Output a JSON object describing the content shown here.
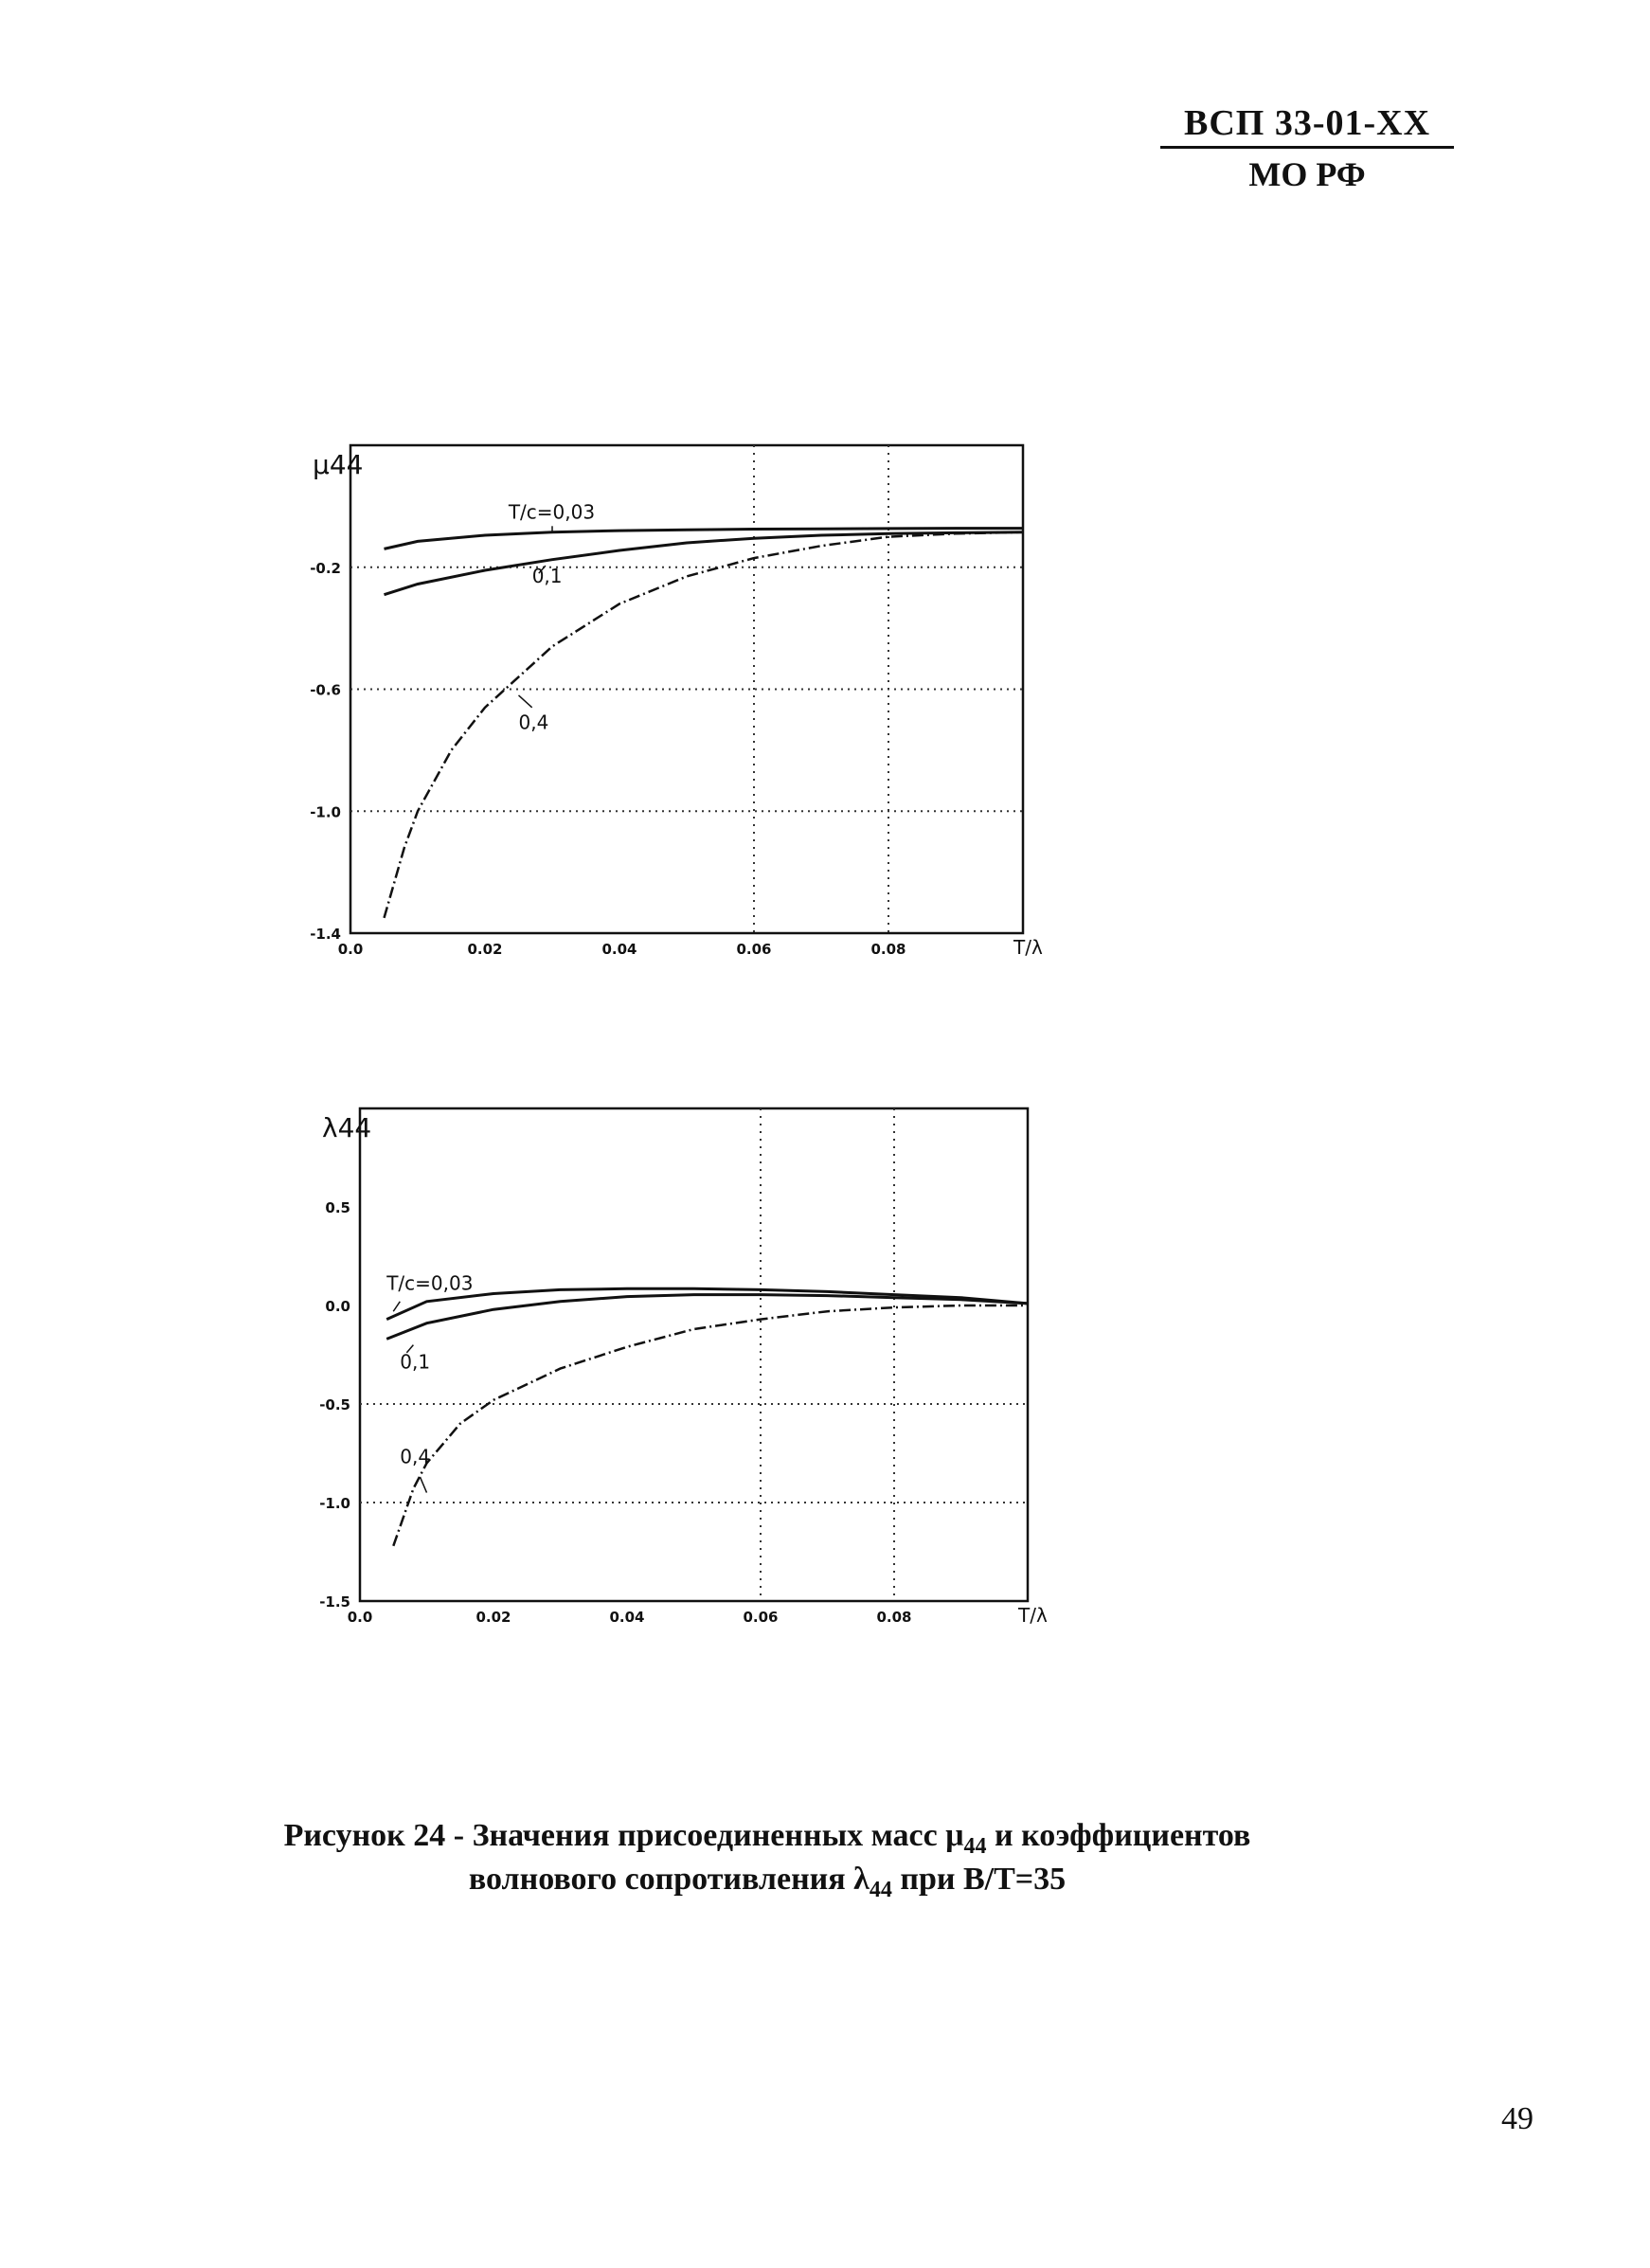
{
  "header": {
    "code": "ВСП 33-01-XX",
    "org": "МО РФ"
  },
  "chart_data": [
    {
      "type": "line",
      "ylabel": "μ44",
      "xlabel": "T/λ",
      "xlim": [
        0.0,
        0.1
      ],
      "ylim": [
        -1.4,
        0.2
      ],
      "xticks": [
        "0.0",
        "0.02",
        "0.04",
        "0.06",
        "0.08"
      ],
      "xtick_values": [
        0.0,
        0.02,
        0.04,
        0.06,
        0.08
      ],
      "yticks": [
        "-0.2",
        "-0.6",
        "-1.0",
        "-1.4"
      ],
      "ytick_values": [
        -0.2,
        -0.6,
        -1.0,
        -1.4
      ],
      "series": [
        {
          "name": "T/c=0,03",
          "style": "solid",
          "x": [
            0.005,
            0.01,
            0.02,
            0.03,
            0.04,
            0.05,
            0.06,
            0.07,
            0.08,
            0.09,
            0.1
          ],
          "y": [
            -0.14,
            -0.115,
            -0.095,
            -0.085,
            -0.08,
            -0.077,
            -0.075,
            -0.074,
            -0.073,
            -0.072,
            -0.072
          ]
        },
        {
          "name": "0,1",
          "style": "solid",
          "x": [
            0.005,
            0.01,
            0.02,
            0.03,
            0.04,
            0.05,
            0.06,
            0.07,
            0.08,
            0.09,
            0.1
          ],
          "y": [
            -0.29,
            -0.255,
            -0.21,
            -0.175,
            -0.145,
            -0.12,
            -0.105,
            -0.095,
            -0.09,
            -0.087,
            -0.085
          ]
        },
        {
          "name": "0,4",
          "style": "dashed",
          "x": [
            0.005,
            0.008,
            0.01,
            0.015,
            0.02,
            0.025,
            0.03,
            0.04,
            0.05,
            0.06,
            0.07,
            0.08,
            0.09,
            0.1
          ],
          "y": [
            -1.35,
            -1.12,
            -1.0,
            -0.8,
            -0.66,
            -0.56,
            -0.46,
            -0.32,
            -0.23,
            -0.17,
            -0.13,
            -0.1,
            -0.09,
            -0.085
          ]
        }
      ],
      "annotations": [
        "T/c=0,03",
        "0,1",
        "0,4"
      ]
    },
    {
      "type": "line",
      "ylabel": "λ44",
      "xlabel": "T/λ",
      "xlim": [
        0.0,
        0.1
      ],
      "ylim": [
        -1.5,
        1.0
      ],
      "xticks": [
        "0.0",
        "0.02",
        "0.04",
        "0.06",
        "0.08"
      ],
      "xtick_values": [
        0.0,
        0.02,
        0.04,
        0.06,
        0.08
      ],
      "yticks": [
        "0.5",
        "0.0",
        "-0.5",
        "-1.0",
        "-1.5"
      ],
      "ytick_values": [
        0.5,
        0.0,
        -0.5,
        -1.0,
        -1.5
      ],
      "series": [
        {
          "name": "T/c=0,03",
          "style": "solid",
          "x": [
            0.004,
            0.01,
            0.02,
            0.03,
            0.04,
            0.05,
            0.06,
            0.07,
            0.08,
            0.09,
            0.1
          ],
          "y": [
            -0.07,
            0.02,
            0.06,
            0.08,
            0.085,
            0.085,
            0.08,
            0.07,
            0.055,
            0.04,
            0.01
          ]
        },
        {
          "name": "0,1",
          "style": "solid",
          "x": [
            0.004,
            0.01,
            0.02,
            0.03,
            0.04,
            0.05,
            0.06,
            0.07,
            0.08,
            0.09,
            0.1
          ],
          "y": [
            -0.17,
            -0.09,
            -0.02,
            0.02,
            0.045,
            0.055,
            0.055,
            0.05,
            0.04,
            0.03,
            0.01
          ]
        },
        {
          "name": "0,4",
          "style": "dashed",
          "x": [
            0.005,
            0.008,
            0.01,
            0.015,
            0.02,
            0.03,
            0.04,
            0.05,
            0.06,
            0.07,
            0.08,
            0.09,
            0.1
          ],
          "y": [
            -1.22,
            -0.93,
            -0.8,
            -0.6,
            -0.48,
            -0.32,
            -0.21,
            -0.12,
            -0.07,
            -0.03,
            -0.01,
            0.0,
            0.0
          ]
        }
      ],
      "annotations": [
        "T/c=0,03",
        "0,1",
        "0,4"
      ]
    }
  ],
  "caption": {
    "line1_a": "Рисунок 24 - Значения присоединенных масс μ",
    "line1_sub": "44",
    "line1_b": " и коэффициентов",
    "line2_a": "волнового сопротивления λ",
    "line2_sub": "44",
    "line2_b": " при B/T=35"
  },
  "page_number": "49"
}
